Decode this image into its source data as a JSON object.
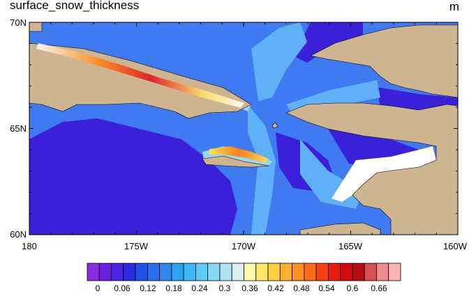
{
  "header": {
    "title": "surface_snow_thickness",
    "units": "m"
  },
  "map": {
    "lon_range": [
      -180,
      -160
    ],
    "lat_range": [
      60,
      70
    ],
    "lat_labels": [
      "70N",
      "65N",
      "60N"
    ],
    "lon_labels": [
      "180",
      "175W",
      "170W",
      "165W",
      "160W"
    ],
    "colors": {
      "land": "#cfb58f",
      "open_water": "#ffffff",
      "thin_snow": "#3a20d8",
      "moderate_snow": "#3f7af0",
      "thick_snow": "#e0141e"
    }
  },
  "colorbar": {
    "labels": [
      "0",
      "0.06",
      "0.12",
      "0.18",
      "0.24",
      "0.3",
      "0.36",
      "0.42",
      "0.48",
      "0.54",
      "0.6",
      "0.66"
    ],
    "colors": [
      "#8a2be2",
      "#6a1ee0",
      "#4b22e0",
      "#2b2ce6",
      "#2450ea",
      "#2a6ef0",
      "#2f88f2",
      "#2ea2f4",
      "#3bb8f6",
      "#5ccbf6",
      "#86d8f4",
      "#b0e4f2",
      "#d8f0ee",
      "#fffaa8",
      "#ffe86a",
      "#ffd040",
      "#ffb02a",
      "#ff9020",
      "#ff6a14",
      "#f84010",
      "#e81c10",
      "#d00a10",
      "#b80a12",
      "#d65050",
      "#f08c8c",
      "#ffb4b4"
    ]
  }
}
